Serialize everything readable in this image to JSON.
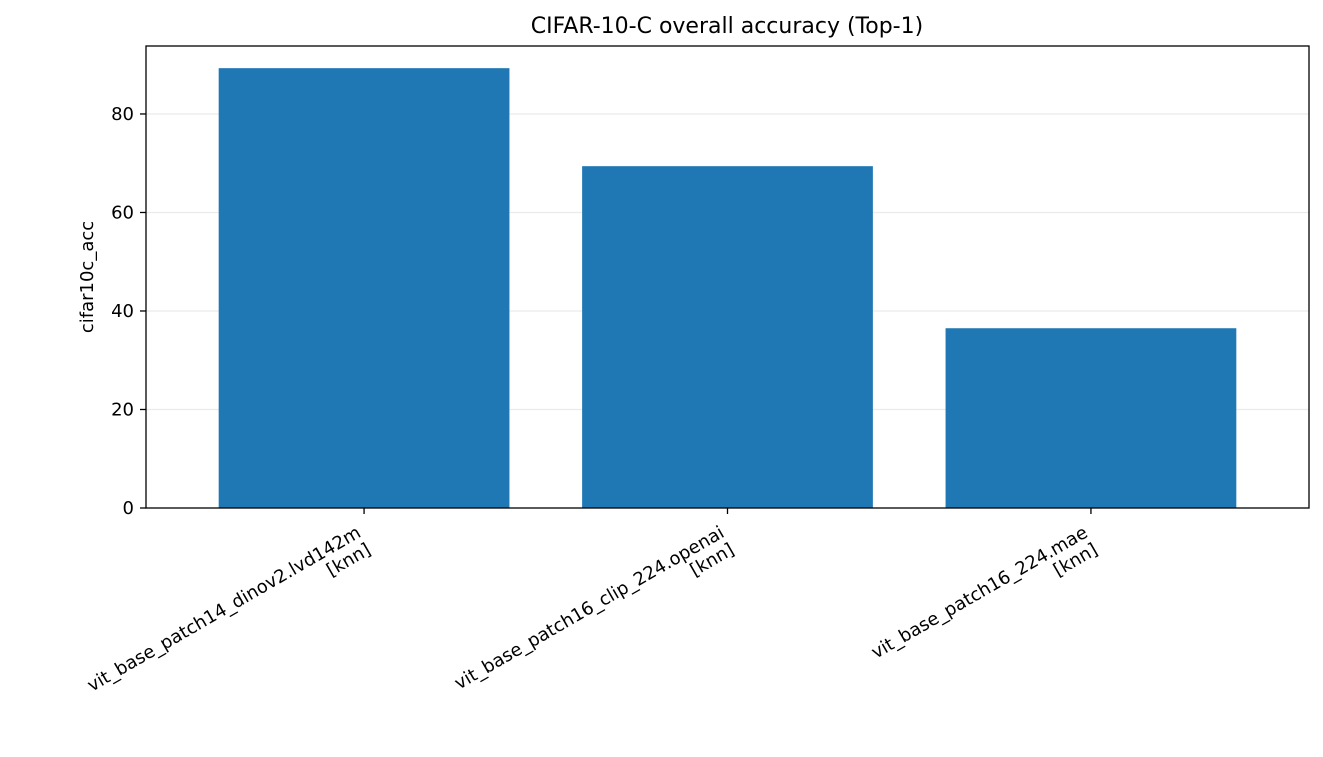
{
  "chart_data": {
    "type": "bar",
    "title": "CIFAR-10-C overall accuracy (Top-1)",
    "xlabel": "",
    "ylabel": "cifar10c_acc",
    "categories": [
      "vit_base_patch14_dinov2.lvd142m\n[knn]",
      "vit_base_patch16_clip_224.openai\n[knn]",
      "vit_base_patch16_224.mae\n[knn]"
    ],
    "values": [
      89.3,
      69.4,
      36.5
    ],
    "ylim": [
      0,
      93.8
    ],
    "yticks": [
      0,
      20,
      40,
      60,
      80
    ],
    "grid": "y",
    "colors": {
      "bar": "#1f77b4",
      "grid": "#ebebeb",
      "axis": "#000000"
    }
  }
}
